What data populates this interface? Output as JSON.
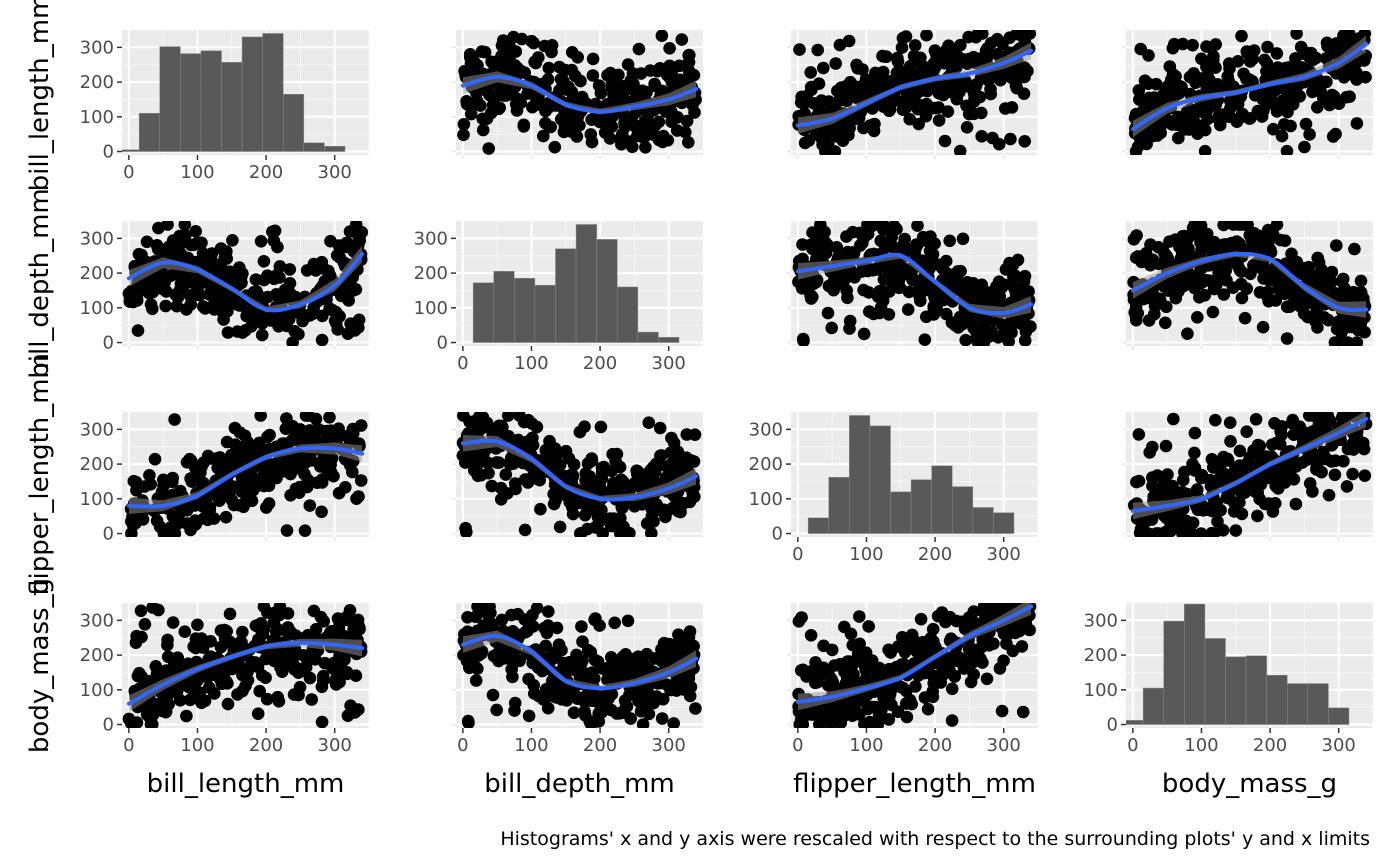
{
  "chart_data": {
    "type": "scatter",
    "title": "",
    "subtitle": "",
    "variables": [
      "bill_length_mm",
      "bill_depth_mm",
      "flipper_length_mm",
      "body_mass_g"
    ],
    "x_axis_titles": [
      "bill_length_mm",
      "bill_depth_mm",
      "flipper_length_mm",
      "body_mass_g"
    ],
    "y_axis_titles": [
      "bill_length_mm",
      "bill_depth_mm",
      "flipper_length_mm",
      "body_mass_g"
    ],
    "ticks": [
      0,
      100,
      200,
      300
    ],
    "axis_range": [
      -10,
      350
    ],
    "grid": true,
    "panel_background": "#ebebeb",
    "point_color": "#000000",
    "smooth_color": "#3366ff",
    "bar_color": "#595959",
    "caption": "Histograms' x and y axis were rescaled with respect to the surrounding plots' y and x limits",
    "point_count_per_panel": 340,
    "histograms": [
      {
        "variable": "bill_length_mm",
        "bin_centers": [
          0,
          30,
          60,
          90,
          120,
          150,
          180,
          210,
          240,
          270,
          300,
          330
        ],
        "counts": [
          5,
          110,
          302,
          282,
          290,
          257,
          330,
          340,
          165,
          25,
          15,
          0
        ]
      },
      {
        "variable": "bill_depth_mm",
        "bin_centers": [
          0,
          30,
          60,
          90,
          120,
          150,
          180,
          210,
          240,
          270,
          300,
          330
        ],
        "counts": [
          0,
          172,
          205,
          185,
          165,
          270,
          340,
          297,
          160,
          30,
          15,
          0
        ]
      },
      {
        "variable": "flipper_length_mm",
        "bin_centers": [
          0,
          30,
          60,
          90,
          120,
          150,
          180,
          210,
          240,
          270,
          300,
          330
        ],
        "counts": [
          0,
          45,
          162,
          340,
          310,
          120,
          155,
          195,
          135,
          75,
          60,
          0
        ]
      },
      {
        "variable": "body_mass_g",
        "bin_centers": [
          0,
          30,
          60,
          90,
          120,
          150,
          180,
          210,
          240,
          270,
          300,
          330
        ],
        "counts": [
          12,
          105,
          298,
          347,
          248,
          195,
          198,
          142,
          118,
          118,
          48,
          0
        ]
      }
    ],
    "smooths": [
      {
        "row": 0,
        "col": 1,
        "x": [
          0,
          50,
          100,
          150,
          200,
          250,
          300,
          340
        ],
        "y": [
          190,
          215,
          190,
          135,
          115,
          130,
          150,
          180
        ]
      },
      {
        "row": 0,
        "col": 2,
        "x": [
          0,
          50,
          100,
          150,
          200,
          250,
          300,
          340
        ],
        "y": [
          75,
          95,
          140,
          185,
          210,
          225,
          255,
          290
        ]
      },
      {
        "row": 0,
        "col": 3,
        "x": [
          0,
          50,
          100,
          150,
          200,
          250,
          300,
          340
        ],
        "y": [
          65,
          125,
          155,
          170,
          195,
          215,
          255,
          310
        ]
      },
      {
        "row": 1,
        "col": 0,
        "x": [
          0,
          50,
          100,
          150,
          200,
          250,
          300,
          340
        ],
        "y": [
          185,
          230,
          210,
          155,
          95,
          110,
          165,
          255
        ]
      },
      {
        "row": 1,
        "col": 2,
        "x": [
          0,
          50,
          100,
          150,
          200,
          250,
          300,
          340
        ],
        "y": [
          205,
          220,
          235,
          250,
          175,
          100,
          85,
          110
        ]
      },
      {
        "row": 1,
        "col": 3,
        "x": [
          0,
          50,
          100,
          150,
          200,
          250,
          300,
          340
        ],
        "y": [
          150,
          200,
          235,
          255,
          240,
          160,
          100,
          95
        ]
      },
      {
        "row": 2,
        "col": 0,
        "x": [
          0,
          50,
          100,
          150,
          200,
          250,
          300,
          340
        ],
        "y": [
          80,
          80,
          110,
          170,
          220,
          245,
          245,
          230
        ]
      },
      {
        "row": 2,
        "col": 1,
        "x": [
          0,
          50,
          100,
          150,
          200,
          250,
          300,
          340
        ],
        "y": [
          260,
          265,
          215,
          135,
          100,
          105,
          130,
          165
        ]
      },
      {
        "row": 2,
        "col": 3,
        "x": [
          0,
          50,
          100,
          150,
          200,
          250,
          300,
          340
        ],
        "y": [
          65,
          80,
          100,
          145,
          200,
          245,
          290,
          330
        ]
      },
      {
        "row": 3,
        "col": 0,
        "x": [
          0,
          50,
          100,
          150,
          200,
          250,
          300,
          340
        ],
        "y": [
          60,
          115,
          160,
          195,
          225,
          235,
          230,
          220
        ]
      },
      {
        "row": 3,
        "col": 1,
        "x": [
          0,
          50,
          100,
          150,
          200,
          250,
          300,
          340
        ],
        "y": [
          230,
          255,
          210,
          125,
          105,
          120,
          150,
          190
        ]
      },
      {
        "row": 3,
        "col": 2,
        "x": [
          0,
          50,
          100,
          150,
          200,
          250,
          300,
          340
        ],
        "y": [
          65,
          80,
          105,
          135,
          195,
          255,
          300,
          340
        ]
      }
    ]
  }
}
